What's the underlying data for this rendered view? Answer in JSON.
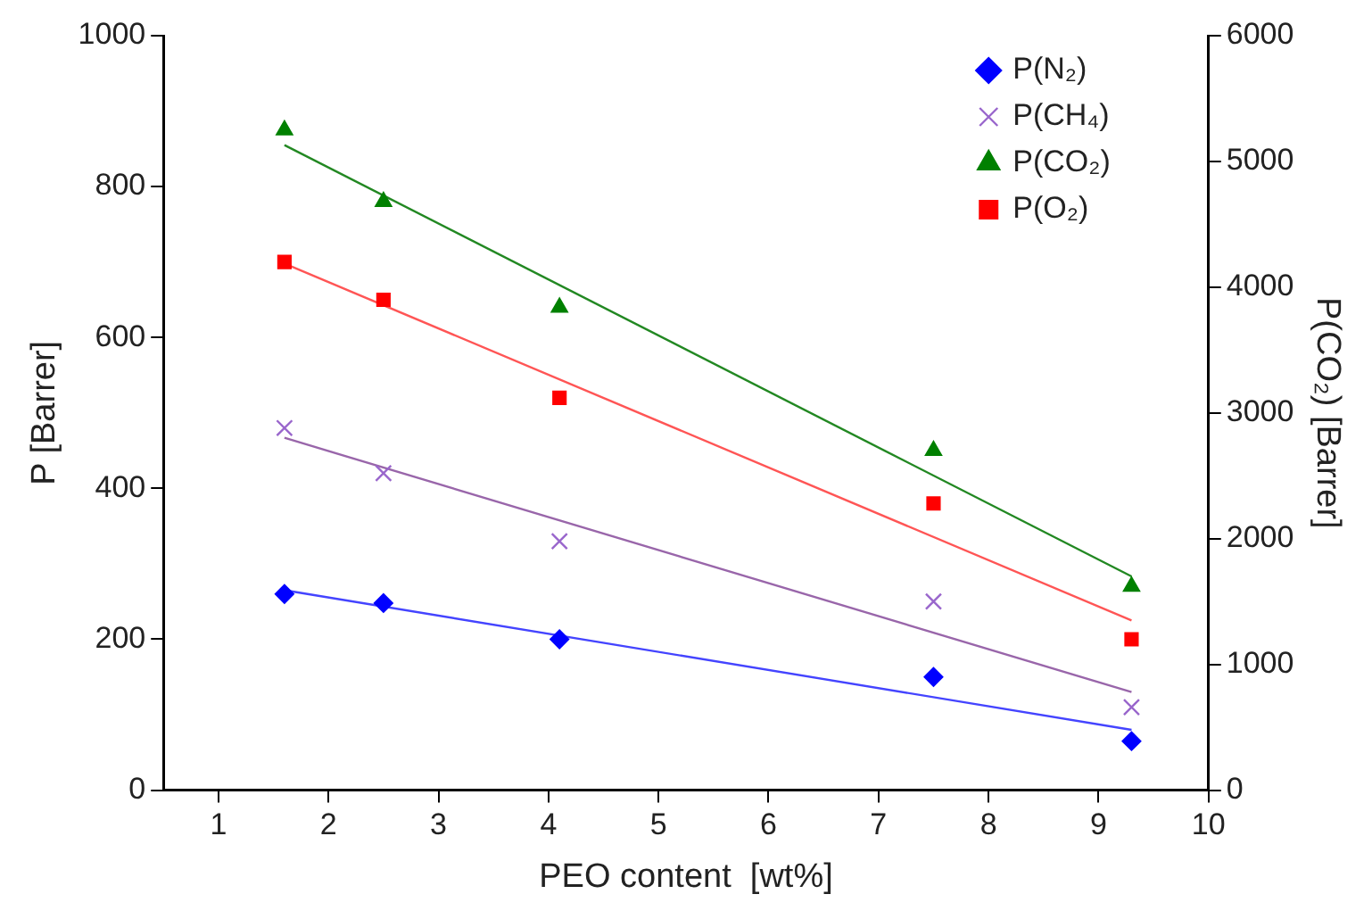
{
  "chart_data": {
    "type": "scatter",
    "xlabel": "PEO content  [wt%]",
    "ylabel": "P [Barrer]",
    "y2label": "P(CO₂) [Barrer]",
    "xlim": [
      0.5,
      10
    ],
    "xticks": [
      1,
      2,
      3,
      4,
      5,
      6,
      7,
      8,
      9,
      10
    ],
    "ylim": [
      0,
      1000
    ],
    "yticks": [
      0,
      200,
      400,
      600,
      800,
      1000
    ],
    "y2lim": [
      0,
      6000
    ],
    "y2ticks": [
      0,
      1000,
      2000,
      3000,
      4000,
      5000,
      6000
    ],
    "grid": false,
    "legend": "top right",
    "series": [
      {
        "name": "P(N₂)",
        "type": "scatter",
        "marker": "diamond",
        "color": "#0000ff",
        "x": [
          1.6,
          2.5,
          4.1,
          7.5,
          9.3
        ],
        "values": [
          260,
          248,
          200,
          150,
          65
        ]
      },
      {
        "name": "P(CH₄)",
        "type": "scatter",
        "marker": "cross",
        "color": "#9966cc",
        "x": [
          1.6,
          2.5,
          4.1,
          7.5,
          9.3
        ],
        "values": [
          480,
          420,
          330,
          250,
          110
        ]
      },
      {
        "name": "P(CO₂)",
        "type": "scatter",
        "marker": "triangle",
        "color": "#008000",
        "axis": "y2",
        "x": [
          1.6,
          2.5,
          4.1,
          7.5,
          9.3
        ],
        "values": [
          5250,
          4680,
          3840,
          2700,
          1620
        ]
      },
      {
        "name": "P(O₂)",
        "type": "scatter",
        "marker": "square",
        "color": "#ff0000",
        "x": [
          1.6,
          2.5,
          4.1,
          7.5,
          9.3
        ],
        "values": [
          700,
          650,
          520,
          380,
          200
        ]
      },
      {
        "type": "line",
        "marker": "none",
        "color": "#4444ff",
        "x": [
          1.6,
          9.3
        ],
        "values": [
          265,
          80
        ]
      },
      {
        "type": "line",
        "marker": "none",
        "color": "#9966aa",
        "x": [
          1.6,
          9.3
        ],
        "values": [
          467,
          130
        ]
      },
      {
        "type": "line",
        "marker": "none",
        "color": "#228822",
        "axis": "y2",
        "x": [
          1.6,
          9.3
        ],
        "values": [
          5130,
          1700
        ]
      },
      {
        "type": "line",
        "marker": "none",
        "color": "#ff5555",
        "x": [
          1.6,
          9.3
        ],
        "values": [
          698,
          225
        ]
      }
    ]
  }
}
